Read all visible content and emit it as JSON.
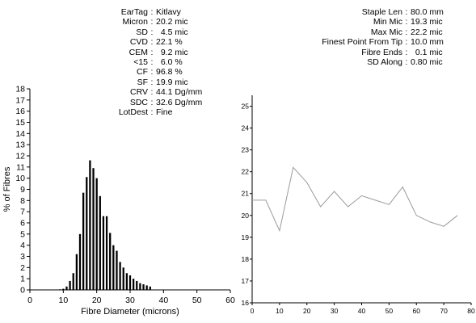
{
  "stats_left": [
    {
      "label": "EarTag",
      "value": "Kitlavy"
    },
    {
      "label": "Micron",
      "value": "20.2 mic"
    },
    {
      "label": "SD",
      "value": "  4.5 mic"
    },
    {
      "label": "CVD",
      "value": "22.1 %"
    },
    {
      "label": "CEM",
      "value": "  9.2 mic"
    },
    {
      "label": "<15",
      "value": "  6.0 %"
    },
    {
      "label": "CF",
      "value": "96.8 %"
    },
    {
      "label": "SF",
      "value": "19.9 mic"
    },
    {
      "label": "CRV",
      "value": "44.1 Dg/mm"
    },
    {
      "label": "SDC",
      "value": "32.6 Dg/mm"
    },
    {
      "label": "LotDest",
      "value": "Fine"
    }
  ],
  "stats_right": [
    {
      "label": "Staple Len",
      "value": "80.0 mm"
    },
    {
      "label": "Min Mic",
      "value": "19.3 mic"
    },
    {
      "label": "Max Mic",
      "value": "22.2 mic"
    },
    {
      "label": "Finest Point From Tip",
      "value": "10.0 mm"
    },
    {
      "label": "Fibre Ends",
      "value": "  0.1 mic"
    },
    {
      "label": "SD Along",
      "value": "0.80 mic"
    }
  ],
  "chart_data": [
    {
      "type": "bar",
      "xlabel": "Fibre Diameter (microns)",
      "ylabel": "% of Fibres",
      "xlim": [
        0,
        60
      ],
      "ylim": [
        0,
        18
      ],
      "xticks": [
        0,
        10,
        20,
        30,
        40,
        50,
        60
      ],
      "yticks": [
        0,
        1,
        2,
        3,
        4,
        5,
        6,
        7,
        8,
        9,
        10,
        11,
        12,
        13,
        14,
        15,
        16,
        17,
        18
      ],
      "x": [
        9,
        10,
        11,
        12,
        13,
        14,
        15,
        16,
        17,
        18,
        19,
        20,
        21,
        22,
        23,
        24,
        25,
        26,
        27,
        28,
        29,
        30,
        31,
        32,
        33,
        34,
        35,
        36
      ],
      "values": [
        0.05,
        0.1,
        0.3,
        0.8,
        1.5,
        3.2,
        5.0,
        8.7,
        10.1,
        11.6,
        10.9,
        10.0,
        8.4,
        6.6,
        6.6,
        5.1,
        4.0,
        3.5,
        2.5,
        2.0,
        1.5,
        1.3,
        1.0,
        0.8,
        0.6,
        0.5,
        0.4,
        0.3
      ],
      "legend": "none",
      "grid": false
    },
    {
      "type": "line",
      "xlabel": "",
      "ylabel": "",
      "xlim": [
        0,
        80
      ],
      "ylim": [
        16,
        25.5
      ],
      "xticks": [
        0,
        10,
        20,
        30,
        40,
        50,
        60,
        70,
        80
      ],
      "yticks": [
        16,
        17,
        18,
        19,
        20,
        21,
        22,
        23,
        24,
        25
      ],
      "x": [
        0,
        5,
        10,
        15,
        20,
        25,
        30,
        35,
        40,
        45,
        50,
        55,
        60,
        65,
        70,
        75
      ],
      "values": [
        20.7,
        20.7,
        19.3,
        22.2,
        21.5,
        20.4,
        21.1,
        20.4,
        20.9,
        20.7,
        20.5,
        21.3,
        20.0,
        19.7,
        19.5,
        20.0
      ],
      "line_color": "#9a9a9a",
      "legend": "none",
      "grid": false
    }
  ]
}
